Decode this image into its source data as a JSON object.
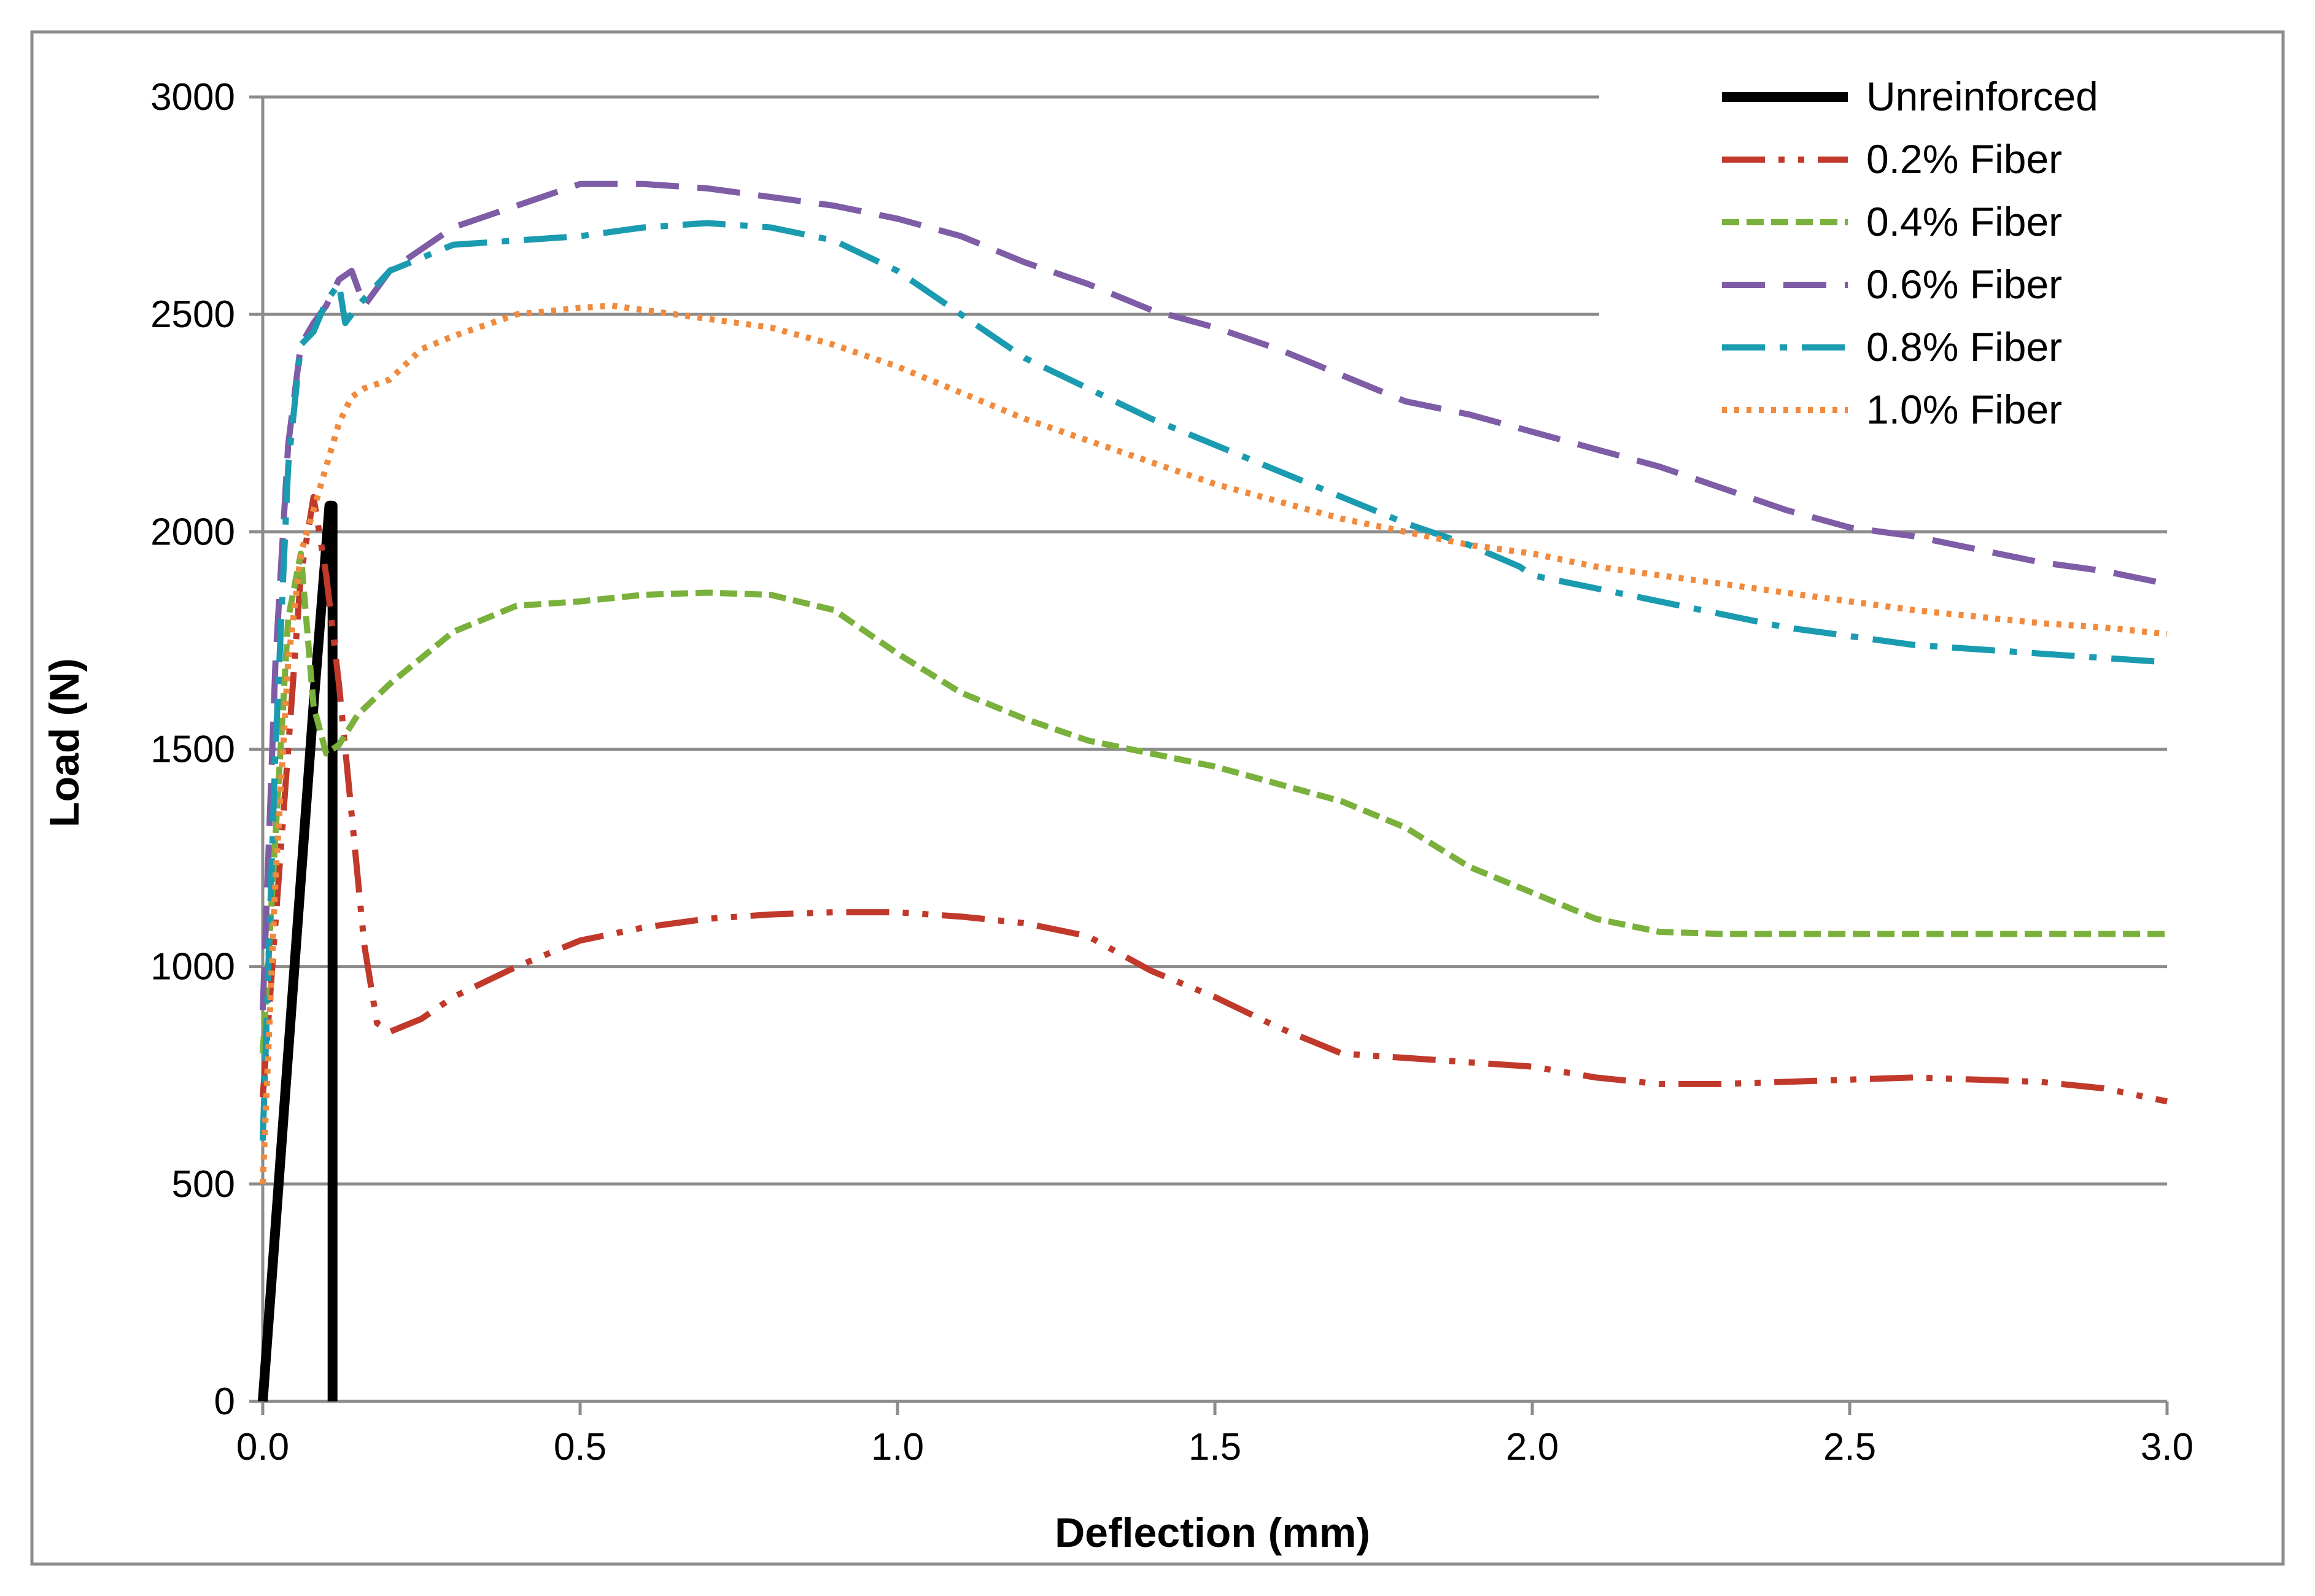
{
  "chart_data": {
    "type": "line",
    "title": "",
    "xlabel": "Deflection (mm)",
    "ylabel": "Load (N)",
    "xlim": [
      0,
      3.0
    ],
    "ylim": [
      0,
      3000
    ],
    "x_ticks": [
      "0.0",
      "0.5",
      "1.0",
      "1.5",
      "2.0",
      "2.5",
      "3.0"
    ],
    "y_ticks": [
      "0",
      "500",
      "1000",
      "1500",
      "2000",
      "2500",
      "3000"
    ],
    "grid": "horizontal",
    "legend_position": "top-right",
    "series": [
      {
        "name": "Unreinforced",
        "color": "#000000",
        "style": "solid",
        "x": [
          0.0,
          0.02,
          0.05,
          0.08,
          0.105,
          0.11,
          0.11
        ],
        "y": [
          0,
          400,
          1000,
          1600,
          2060,
          2060,
          0
        ]
      },
      {
        "name": "0.2% Fiber",
        "color": "#c0392b",
        "style": "dash-dot-dot",
        "x": [
          0.0,
          0.02,
          0.04,
          0.06,
          0.08,
          0.1,
          0.12,
          0.14,
          0.16,
          0.18,
          0.2,
          0.25,
          0.3,
          0.4,
          0.5,
          0.6,
          0.7,
          0.8,
          0.9,
          1.0,
          1.1,
          1.2,
          1.3,
          1.4,
          1.5,
          1.6,
          1.7,
          1.8,
          1.9,
          2.0,
          2.1,
          2.2,
          2.3,
          2.4,
          2.5,
          2.6,
          2.7,
          2.8,
          2.9,
          3.0
        ],
        "y": [
          700,
          1100,
          1500,
          1900,
          2080,
          1900,
          1650,
          1350,
          1050,
          870,
          850,
          880,
          930,
          1000,
          1060,
          1090,
          1110,
          1120,
          1125,
          1125,
          1115,
          1100,
          1070,
          990,
          930,
          860,
          800,
          790,
          780,
          770,
          745,
          730,
          730,
          735,
          740,
          745,
          740,
          735,
          720,
          690
        ]
      },
      {
        "name": "0.4% Fiber",
        "color": "#7ab03c",
        "style": "dashed",
        "x": [
          0.0,
          0.02,
          0.04,
          0.06,
          0.08,
          0.1,
          0.12,
          0.15,
          0.2,
          0.3,
          0.4,
          0.5,
          0.6,
          0.7,
          0.8,
          0.9,
          1.0,
          1.1,
          1.2,
          1.3,
          1.4,
          1.5,
          1.6,
          1.7,
          1.8,
          1.9,
          2.0,
          2.1,
          2.2,
          2.3,
          2.4,
          2.5,
          2.6,
          2.7,
          2.8,
          2.9,
          3.0
        ],
        "y": [
          800,
          1300,
          1800,
          1950,
          1600,
          1490,
          1510,
          1580,
          1650,
          1770,
          1830,
          1840,
          1855,
          1860,
          1855,
          1820,
          1720,
          1630,
          1570,
          1520,
          1490,
          1460,
          1420,
          1380,
          1320,
          1230,
          1170,
          1110,
          1080,
          1075,
          1075,
          1075,
          1075,
          1075,
          1075,
          1075,
          1075
        ]
      },
      {
        "name": "0.6% Fiber",
        "color": "#7e5ca6",
        "style": "long-dash",
        "x": [
          0.0,
          0.02,
          0.04,
          0.06,
          0.08,
          0.1,
          0.12,
          0.14,
          0.16,
          0.2,
          0.3,
          0.4,
          0.5,
          0.6,
          0.7,
          0.8,
          0.9,
          1.0,
          1.1,
          1.2,
          1.3,
          1.4,
          1.5,
          1.6,
          1.7,
          1.8,
          1.9,
          2.0,
          2.1,
          2.2,
          2.3,
          2.4,
          2.5,
          2.6,
          2.7,
          2.8,
          2.9,
          3.0
        ],
        "y": [
          900,
          1700,
          2200,
          2430,
          2480,
          2520,
          2580,
          2600,
          2520,
          2600,
          2700,
          2750,
          2800,
          2800,
          2790,
          2770,
          2750,
          2720,
          2680,
          2620,
          2570,
          2510,
          2470,
          2420,
          2360,
          2300,
          2270,
          2230,
          2190,
          2150,
          2100,
          2050,
          2010,
          1990,
          1960,
          1930,
          1910,
          1880
        ]
      },
      {
        "name": "0.8% Fiber",
        "color": "#1a9bb0",
        "style": "dash-dot",
        "x": [
          0.0,
          0.02,
          0.04,
          0.06,
          0.08,
          0.1,
          0.12,
          0.13,
          0.15,
          0.2,
          0.3,
          0.4,
          0.5,
          0.6,
          0.7,
          0.8,
          0.9,
          1.0,
          1.1,
          1.2,
          1.3,
          1.4,
          1.5,
          1.6,
          1.7,
          1.8,
          1.9,
          1.98,
          2.0,
          2.1,
          2.2,
          2.3,
          2.4,
          2.5,
          2.6,
          2.7,
          2.8,
          2.9,
          3.0
        ],
        "y": [
          600,
          1500,
          2150,
          2430,
          2460,
          2530,
          2570,
          2480,
          2520,
          2600,
          2660,
          2670,
          2680,
          2700,
          2710,
          2700,
          2670,
          2600,
          2500,
          2400,
          2330,
          2260,
          2200,
          2140,
          2080,
          2020,
          1970,
          1920,
          1900,
          1870,
          1840,
          1810,
          1780,
          1760,
          1740,
          1730,
          1720,
          1710,
          1700
        ]
      },
      {
        "name": "1.0% Fiber",
        "color": "#f08a3c",
        "style": "dotted",
        "x": [
          0.0,
          0.02,
          0.04,
          0.06,
          0.08,
          0.1,
          0.12,
          0.14,
          0.16,
          0.2,
          0.25,
          0.3,
          0.4,
          0.5,
          0.55,
          0.6,
          0.7,
          0.8,
          0.9,
          1.0,
          1.1,
          1.2,
          1.3,
          1.4,
          1.5,
          1.6,
          1.7,
          1.8,
          1.9,
          2.0,
          2.1,
          2.2,
          2.3,
          2.4,
          2.5,
          2.6,
          2.7,
          2.8,
          2.9,
          3.0
        ],
        "y": [
          500,
          1200,
          1700,
          1950,
          2050,
          2150,
          2250,
          2310,
          2330,
          2350,
          2420,
          2450,
          2500,
          2515,
          2520,
          2510,
          2490,
          2470,
          2430,
          2380,
          2320,
          2260,
          2210,
          2160,
          2110,
          2070,
          2030,
          2000,
          1970,
          1950,
          1920,
          1900,
          1880,
          1860,
          1840,
          1820,
          1805,
          1790,
          1780,
          1765
        ]
      }
    ]
  }
}
